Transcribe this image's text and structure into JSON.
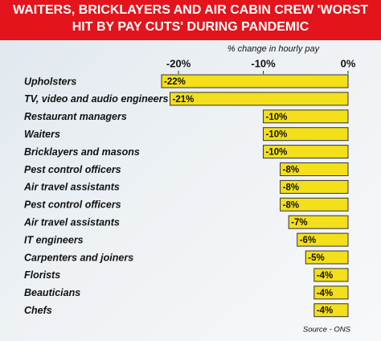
{
  "chart_data": {
    "type": "bar",
    "orientation": "horizontal",
    "title": "WAITERS, BRICKLAYERS AND AIR CABIN CREW 'WORST HIT BY PAY CUTS' DURING PANDEMIC",
    "x_label": "% change in hourly pay",
    "source": "Source - ONS",
    "categories": [
      "Upholsters",
      "TV, video and audio engineers",
      "Restaurant managers",
      "Waiters",
      "Bricklayers and masons",
      "Pest control officers",
      "Air travel assistants",
      "Pest control officers",
      "Air travel assistants",
      "IT engineers",
      "Carpenters and joiners",
      "Florists",
      "Beauticians",
      "Chefs"
    ],
    "values": [
      -22,
      -21,
      -10,
      -10,
      -10,
      -8,
      -8,
      -8,
      -7,
      -6,
      -5,
      -4,
      -4,
      -4
    ],
    "value_labels": [
      "-22%",
      "-21%",
      "-10%",
      "-10%",
      "-10%",
      "-8%",
      "-8%",
      "-8%",
      "-7%",
      "-6%",
      "-5%",
      "-4%",
      "-4%",
      "-4%"
    ],
    "color": "#f3df1a",
    "xlim": [
      -22,
      0
    ],
    "xticks": [
      {
        "value": -20,
        "label": "-20%"
      },
      {
        "value": -10,
        "label": "-10%"
      },
      {
        "value": 0,
        "label": "0%"
      }
    ]
  }
}
